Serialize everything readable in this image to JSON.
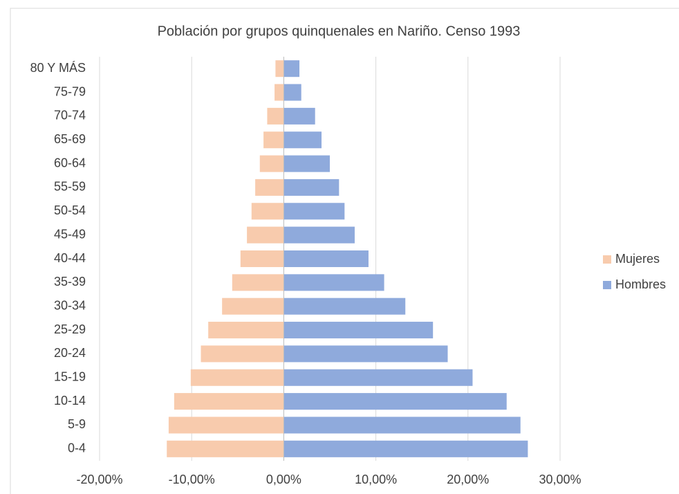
{
  "chart_data": {
    "type": "bar",
    "orientation": "horizontal",
    "stacked": true,
    "title": "Población por grupos quinquenales en Nariño. Censo 1993",
    "categories": [
      "0-4",
      "5-9",
      "10-14",
      "15-19",
      "20-24",
      "25-29",
      "30-34",
      "35-39",
      "40-44",
      "45-49",
      "50-54",
      "55-59",
      "60-64",
      "65-69",
      "70-74",
      "75-79",
      "80 Y MÁS"
    ],
    "series": [
      {
        "name": "Mujeres",
        "color": "#f8cbad",
        "values": [
          -12.7,
          -12.5,
          -11.9,
          -10.1,
          -9.0,
          -8.2,
          -6.7,
          -5.6,
          -4.7,
          -4.0,
          -3.5,
          -3.1,
          -2.6,
          -2.2,
          -1.8,
          -1.0,
          -0.9
        ]
      },
      {
        "name": "Hombres",
        "color": "#8faadc",
        "values": [
          26.5,
          25.7,
          24.2,
          20.5,
          17.8,
          16.2,
          13.2,
          10.9,
          9.2,
          7.7,
          6.6,
          6.0,
          5.0,
          4.1,
          3.4,
          1.9,
          1.7
        ]
      }
    ],
    "xlim": [
      -20,
      30
    ],
    "xticks": [
      {
        "value": -20,
        "label": "-20,00%"
      },
      {
        "value": -10,
        "label": "-10,00%"
      },
      {
        "value": 0,
        "label": "0,00%"
      },
      {
        "value": 10,
        "label": "10,00%"
      },
      {
        "value": 20,
        "label": "20,00%"
      },
      {
        "value": 30,
        "label": "30,00%"
      }
    ],
    "grid": true,
    "legend": "right"
  }
}
